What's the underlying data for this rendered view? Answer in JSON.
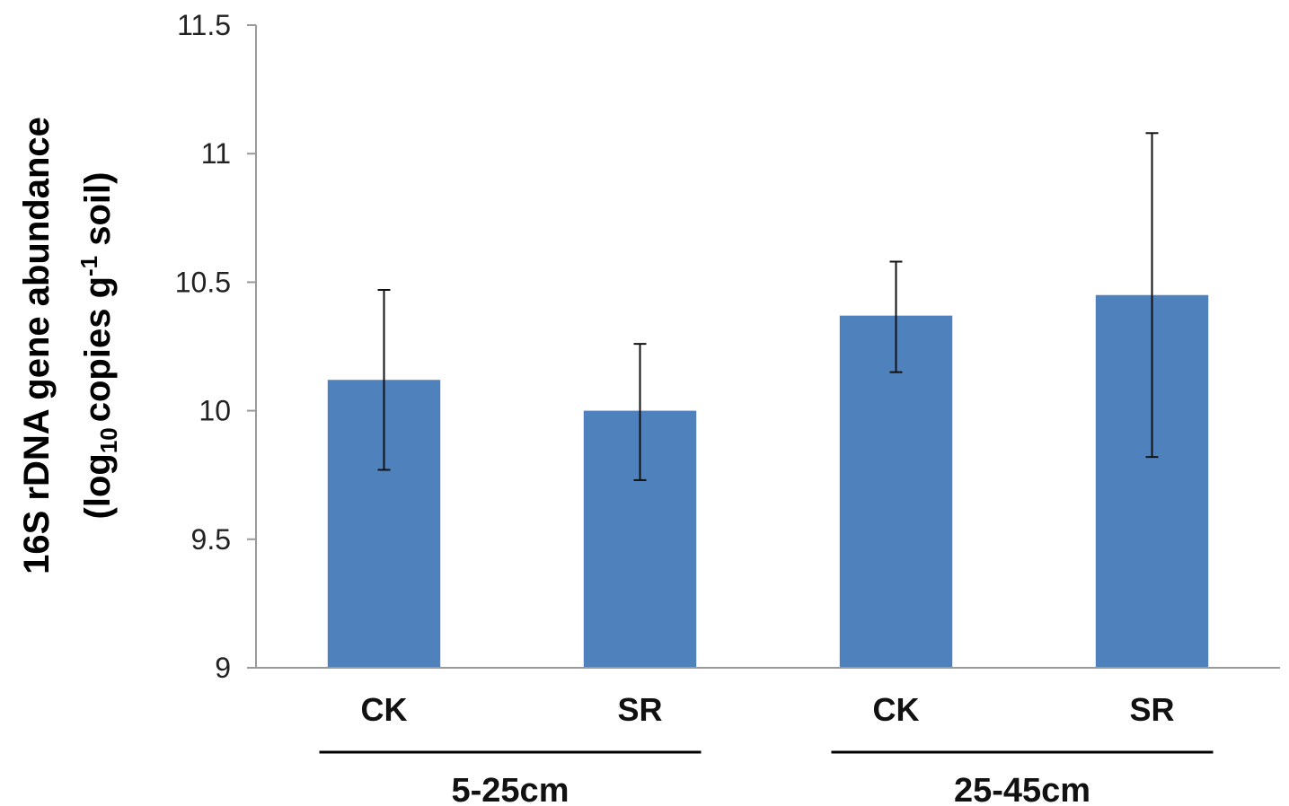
{
  "chart_data": {
    "type": "bar",
    "title": "",
    "ylabel_line1": "16S rDNA gene abundance",
    "ylabel_line2": {
      "open": "(log",
      "sub": "10",
      "mid": "copies g",
      "sup": "-1",
      "close": " soil)"
    },
    "ylim": [
      9,
      11.5
    ],
    "yticks": [
      "9",
      "9.5",
      "10",
      "10.5",
      "11",
      "11.5"
    ],
    "ytick_values": [
      9,
      9.5,
      10,
      10.5,
      11,
      11.5
    ],
    "categories": [
      "CK",
      "SR",
      "CK",
      "SR"
    ],
    "groups": [
      {
        "label": "5-25cm",
        "members": [
          0,
          1
        ]
      },
      {
        "label": "25-45cm",
        "members": [
          2,
          3
        ]
      }
    ],
    "values": [
      10.12,
      10.0,
      10.37,
      10.45
    ],
    "error_low": [
      9.77,
      9.73,
      10.15,
      9.82
    ],
    "error_high": [
      10.47,
      10.26,
      10.58,
      11.08
    ],
    "bar_color": "#4f81bd",
    "axis_color": "#9a9a9a",
    "grid": false
  }
}
